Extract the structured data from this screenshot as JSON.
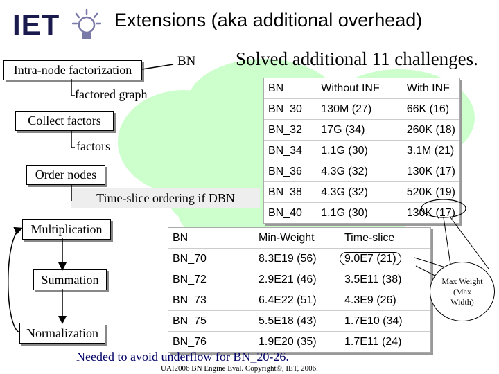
{
  "header": {
    "logo": "IET",
    "title": "Extensions (aka additional overhead)"
  },
  "left": {
    "intra_node": "Intra-node factorization",
    "bn": "BN",
    "factored_graph": "factored graph",
    "collect": "Collect factors",
    "factors": "factors",
    "order": "Order nodes",
    "timeslice": "Time-slice ordering if DBN",
    "multiplication": "Multiplication",
    "summation": "Summation",
    "normalization": "Normalization"
  },
  "solved": "Solved additional 11 challenges.",
  "table1": {
    "headers": [
      "BN",
      "Without INF",
      "With INF"
    ],
    "rows": [
      [
        "BN_30",
        "130M (27)",
        "66K (16)"
      ],
      [
        "BN_32",
        "17G (34)",
        "260K (18)"
      ],
      [
        "BN_34",
        "1.1G (30)",
        "3.1M (21)"
      ],
      [
        "BN_36",
        "4.3G (32)",
        "130K (17)"
      ],
      [
        "BN_38",
        "4.3G (32)",
        "520K (19)"
      ],
      [
        "BN_40",
        "1.1G (30)",
        "130K (17)"
      ]
    ]
  },
  "table2": {
    "headers": [
      "BN",
      "Min-Weight",
      "Time-slice"
    ],
    "rows": [
      [
        "BN_70",
        "8.3E19 (56)",
        "9.0E7 (21)"
      ],
      [
        "BN_72",
        "2.9E21 (46)",
        "3.5E11 (38)"
      ],
      [
        "BN_73",
        "6.4E22 (51)",
        "4.3E9 (26)"
      ],
      [
        "BN_75",
        "5.5E18 (43)",
        "1.7E10 (34)"
      ],
      [
        "BN_76",
        "1.9E20 (35)",
        "1.7E11 (24)"
      ]
    ]
  },
  "callout": "Max Weight (Max Width)",
  "underflow_note": "Needed to avoid underflow for BN_20-26.",
  "footer": "UAI2006 BN Engine Eval.  Copyright©, IET, 2006.",
  "colors": {
    "cloud": "#ccffcc",
    "timeslice_bg": "#eeeeee",
    "title_text": "#000000",
    "note_blue": "#000066"
  }
}
